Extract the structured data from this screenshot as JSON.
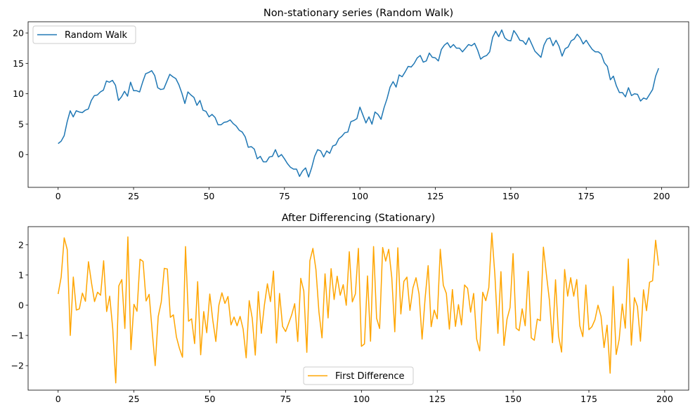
{
  "chart_data": [
    {
      "type": "line",
      "title": "Non-stationary series (Random Walk)",
      "xlabel": "",
      "ylabel": "",
      "xlim": [
        -9.95,
        208.95
      ],
      "ylim": [
        -5.4,
        21.85
      ],
      "xticks": [
        0,
        25,
        50,
        75,
        100,
        125,
        150,
        175,
        200
      ],
      "yticks": [
        0,
        5,
        10,
        15,
        20
      ],
      "grid": false,
      "legend_position": "upper-left",
      "series": [
        {
          "name": "Random Walk",
          "color": "#1f77b4",
          "values": [
            1.8,
            2.2,
            3.1,
            5.4,
            7.2,
            6.2,
            7.2,
            7.0,
            6.9,
            7.3,
            7.5,
            8.9,
            9.7,
            9.8,
            10.3,
            10.6,
            12.1,
            11.9,
            12.2,
            11.4,
            8.9,
            9.5,
            10.4,
            9.6,
            11.9,
            10.5,
            10.5,
            10.3,
            11.9,
            13.3,
            13.5,
            13.8,
            13.0,
            11.0,
            10.7,
            10.8,
            12.0,
            13.2,
            12.8,
            12.5,
            11.5,
            10.1,
            8.4,
            10.3,
            9.8,
            9.4,
            8.1,
            8.9,
            7.3,
            7.1,
            6.2,
            6.6,
            6.1,
            4.9,
            4.9,
            5.3,
            5.4,
            5.7,
            5.1,
            4.7,
            4.0,
            3.7,
            2.9,
            1.2,
            1.3,
            0.9,
            -0.7,
            -0.3,
            -1.2,
            -1.2,
            -0.4,
            -0.3,
            0.8,
            -0.4,
            0.0,
            -0.7,
            -1.5,
            -2.1,
            -2.4,
            -2.4,
            -3.6,
            -2.7,
            -2.2,
            -3.7,
            -2.2,
            -0.3,
            0.8,
            0.6,
            -0.4,
            0.6,
            0.2,
            1.4,
            1.6,
            2.6,
            3.0,
            3.6,
            3.7,
            5.4,
            5.6,
            5.9,
            7.8,
            6.5,
            5.2,
            6.2,
            5.0,
            7.0,
            6.6,
            5.8,
            7.7,
            9.2,
            11.1,
            12.0,
            11.1,
            13.1,
            12.8,
            13.6,
            14.5,
            14.4,
            15.0,
            15.9,
            16.3,
            15.2,
            15.4,
            16.7,
            16.0,
            15.9,
            15.4,
            17.3,
            18.0,
            18.4,
            17.6,
            18.1,
            17.5,
            17.5,
            16.9,
            17.5,
            18.1,
            17.9,
            18.3,
            17.2,
            15.7,
            16.1,
            16.3,
            16.9,
            19.3,
            20.3,
            19.4,
            20.5,
            19.2,
            18.8,
            18.7,
            20.4,
            19.7,
            18.8,
            18.7,
            18.1,
            19.2,
            18.1,
            17.0,
            16.5,
            16.0,
            18.0,
            19.0,
            19.2,
            17.9,
            18.8,
            17.8,
            16.2,
            17.4,
            17.7,
            18.7,
            19.0,
            19.8,
            19.2,
            18.2,
            18.8,
            18.0,
            17.3,
            16.9,
            16.9,
            16.5,
            15.1,
            14.5,
            12.3,
            12.9,
            11.3,
            10.2,
            10.2,
            9.5,
            11.0,
            9.7,
            10.0,
            9.9,
            8.8,
            9.3,
            9.1,
            9.9,
            10.7,
            12.9,
            14.2
          ]
        }
      ]
    },
    {
      "type": "line",
      "title": "After Differencing (Stationary)",
      "xlabel": "",
      "ylabel": "",
      "xlim": [
        -9.9,
        207.9
      ],
      "ylim": [
        -2.81,
        2.6
      ],
      "xticks": [
        0,
        25,
        50,
        75,
        100,
        125,
        150,
        175,
        200
      ],
      "yticks": [
        -2,
        -1,
        0,
        1,
        2
      ],
      "grid": false,
      "legend_position": "lower-center",
      "series": [
        {
          "name": "First Difference",
          "color": "#ffa500",
          "values": [
            0.37,
            0.93,
            2.23,
            1.84,
            -1.0,
            0.93,
            -0.16,
            -0.12,
            0.4,
            0.13,
            1.44,
            0.74,
            0.12,
            0.43,
            0.33,
            1.47,
            -0.21,
            0.3,
            -0.77,
            -2.57,
            0.64,
            0.85,
            -0.77,
            2.26,
            -1.47,
            0.03,
            -0.2,
            1.52,
            1.45,
            0.14,
            0.36,
            -0.85,
            -2.0,
            -0.37,
            0.11,
            1.22,
            1.2,
            -0.4,
            -0.32,
            -1.05,
            -1.43,
            -1.72,
            1.94,
            -0.53,
            -0.45,
            -1.27,
            0.78,
            -1.64,
            -0.21,
            -0.91,
            0.37,
            -0.5,
            -1.2,
            0.0,
            0.41,
            0.06,
            0.29,
            -0.65,
            -0.39,
            -0.68,
            -0.37,
            -0.79,
            -1.74,
            0.15,
            -0.43,
            -1.65,
            0.45,
            -0.93,
            0.0,
            0.71,
            0.12,
            1.13,
            -1.25,
            0.39,
            -0.7,
            -0.87,
            -0.6,
            -0.32,
            0.05,
            -1.2,
            0.89,
            0.47,
            -1.56,
            1.47,
            1.88,
            1.18,
            -0.23,
            -1.08,
            1.04,
            -0.42,
            1.21,
            0.19,
            0.96,
            0.33,
            0.68,
            0.0,
            1.77,
            0.11,
            0.37,
            1.88,
            -1.36,
            -1.28,
            0.97,
            -1.19,
            1.94,
            -0.43,
            -0.77,
            1.91,
            1.46,
            1.85,
            0.93,
            -0.88,
            1.9,
            -0.29,
            0.79,
            0.93,
            -0.17,
            0.58,
            0.91,
            0.37,
            -1.12,
            0.23,
            1.31,
            -0.71,
            -0.16,
            -0.45,
            1.85,
            0.66,
            0.39,
            -0.79,
            0.52,
            -0.7,
            0.02,
            -0.65,
            0.67,
            0.56,
            -0.23,
            0.39,
            -1.12,
            -1.51,
            0.43,
            0.15,
            0.58,
            2.39,
            1.01,
            -0.93,
            1.11,
            -1.33,
            -0.46,
            -0.08,
            1.71,
            -0.76,
            -0.84,
            -0.12,
            -0.68,
            1.12,
            -1.08,
            -1.16,
            -0.46,
            -0.51,
            1.92,
            1.01,
            0.15,
            -1.24,
            0.84,
            -1.02,
            -1.55,
            1.18,
            0.3,
            0.91,
            0.3,
            0.85,
            -0.68,
            -1.04,
            0.67,
            -0.81,
            -0.71,
            -0.48,
            0.0,
            -0.37,
            -1.4,
            -0.66,
            -2.25,
            0.62,
            -1.63,
            -1.12,
            0.04,
            -0.76,
            1.53,
            -1.32,
            0.25,
            -0.04,
            -1.19,
            0.51,
            -0.18,
            0.76,
            0.81,
            2.15,
            1.31
          ]
        }
      ]
    }
  ]
}
